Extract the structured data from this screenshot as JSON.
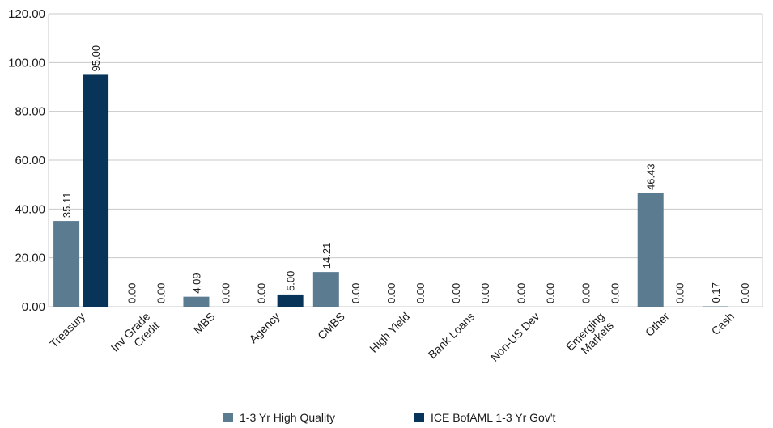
{
  "chart_data": {
    "type": "bar",
    "categories": [
      "Treasury",
      "Inv Grade\nCredit",
      "MBS",
      "Agency",
      "CMBS",
      "High Yield",
      "Bank Loans",
      "Non-US Dev",
      "Emerging\nMarkets",
      "Other",
      "Cash"
    ],
    "series": [
      {
        "name": "1-3 Yr High Quality",
        "color": "#5b7b91",
        "values": [
          35.11,
          0.0,
          4.09,
          0.0,
          14.21,
          0.0,
          0.0,
          0.0,
          0.0,
          46.43,
          0.17
        ]
      },
      {
        "name": "ICE BofAML 1-3 Yr Gov't",
        "color": "#08345a",
        "values": [
          95.0,
          0.0,
          0.0,
          5.0,
          0.0,
          0.0,
          0.0,
          0.0,
          0.0,
          0.0,
          0.0
        ]
      }
    ],
    "ylim": [
      0,
      120
    ],
    "yticks": [
      0,
      20,
      40,
      60,
      80,
      100,
      120
    ],
    "value_format_decimals": 2,
    "grid": true,
    "legend_position": "bottom",
    "title": "",
    "xlabel": "",
    "ylabel": ""
  }
}
